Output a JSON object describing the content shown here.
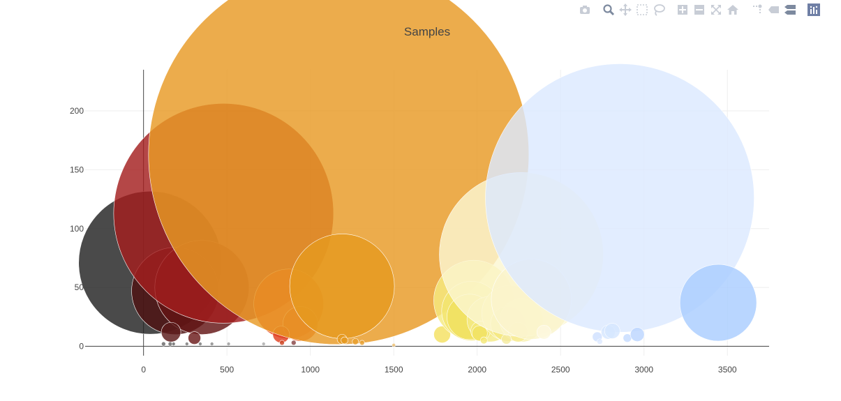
{
  "toolbar": {
    "colors": {
      "icon": "#c8cdd6",
      "logo": "#6f7fa5"
    },
    "buttons": [
      {
        "name": "camera-icon",
        "group": 0
      },
      {
        "name": "zoom-icon",
        "group": 1,
        "active": true
      },
      {
        "name": "pan-icon",
        "group": 1
      },
      {
        "name": "box-select-icon",
        "group": 1
      },
      {
        "name": "lasso-select-icon",
        "group": 1
      },
      {
        "name": "zoom-in-icon",
        "group": 2
      },
      {
        "name": "zoom-out-icon",
        "group": 2
      },
      {
        "name": "autoscale-icon",
        "group": 2
      },
      {
        "name": "reset-axes-icon",
        "group": 2
      },
      {
        "name": "spike-lines-icon",
        "group": 3
      },
      {
        "name": "hover-closest-icon",
        "group": 3
      },
      {
        "name": "hover-compare-icon",
        "group": 3,
        "active": true
      },
      {
        "name": "plotly-logo-icon",
        "group": 4
      }
    ]
  },
  "chart_data": {
    "type": "scatter",
    "title": "Samples",
    "xlabel": "",
    "ylabel": "",
    "xlim": [
      -350,
      3750
    ],
    "ylim": [
      -8,
      235
    ],
    "xticks": [
      0,
      500,
      1000,
      1500,
      2000,
      2500,
      3000,
      3500
    ],
    "yticks": [
      0,
      50,
      100,
      150,
      200
    ],
    "grid": true,
    "legend": "none",
    "points": [
      {
        "x": 40,
        "y": 71,
        "size": 205,
        "color": "#222222"
      },
      {
        "x": 190,
        "y": 47,
        "size": 125,
        "color": "#4e1212"
      },
      {
        "x": 350,
        "y": 50,
        "size": 135,
        "color": "#631414"
      },
      {
        "x": 480,
        "y": 113,
        "size": 315,
        "color": "#a31f1f"
      },
      {
        "x": 165,
        "y": 12,
        "size": 28,
        "color": "#5a1a1a"
      },
      {
        "x": 305,
        "y": 7,
        "size": 18,
        "color": "#6a1a1a"
      },
      {
        "x": 120,
        "y": 2,
        "size": 6,
        "color": "#666666"
      },
      {
        "x": 160,
        "y": 2,
        "size": 6,
        "color": "#666666"
      },
      {
        "x": 180,
        "y": 2,
        "size": 5,
        "color": "#666666"
      },
      {
        "x": 260,
        "y": 2,
        "size": 5,
        "color": "#777777"
      },
      {
        "x": 340,
        "y": 2,
        "size": 5,
        "color": "#777777"
      },
      {
        "x": 410,
        "y": 2,
        "size": 5,
        "color": "#888888"
      },
      {
        "x": 510,
        "y": 2,
        "size": 5,
        "color": "#999999"
      },
      {
        "x": 720,
        "y": 2,
        "size": 5,
        "color": "#aaaaaa"
      },
      {
        "x": 870,
        "y": 36,
        "size": 100,
        "color": "#ea4a20"
      },
      {
        "x": 940,
        "y": 19,
        "size": 50,
        "color": "#e85a2a"
      },
      {
        "x": 825,
        "y": 10,
        "size": 24,
        "color": "#e04020"
      },
      {
        "x": 830,
        "y": 3,
        "size": 7,
        "color": "#cc4422"
      },
      {
        "x": 900,
        "y": 3,
        "size": 7,
        "color": "#884444"
      },
      {
        "x": 1170,
        "y": 163,
        "size": 545,
        "color": "#e89a24"
      },
      {
        "x": 1190,
        "y": 51,
        "size": 150,
        "color": "#e59a20"
      },
      {
        "x": 1190,
        "y": 6,
        "size": 14,
        "color": "#e59a20"
      },
      {
        "x": 1205,
        "y": 5,
        "size": 10,
        "color": "#e59a20"
      },
      {
        "x": 1270,
        "y": 4,
        "size": 9,
        "color": "#e8a030"
      },
      {
        "x": 1310,
        "y": 3,
        "size": 7,
        "color": "#e8a030"
      },
      {
        "x": 1500,
        "y": 1,
        "size": 5,
        "color": "#eec070"
      },
      {
        "x": 1790,
        "y": 10,
        "size": 24,
        "color": "#f4e060"
      },
      {
        "x": 1980,
        "y": 39,
        "size": 115,
        "color": "#f5ea80"
      },
      {
        "x": 1965,
        "y": 30,
        "size": 85,
        "color": "#f3e570"
      },
      {
        "x": 1955,
        "y": 25,
        "size": 65,
        "color": "#f0e060"
      },
      {
        "x": 2075,
        "y": 23,
        "size": 65,
        "color": "#f4ea88"
      },
      {
        "x": 2020,
        "y": 13,
        "size": 28,
        "color": "#f4e878"
      },
      {
        "x": 2015,
        "y": 11,
        "size": 22,
        "color": "#f2e262"
      },
      {
        "x": 2040,
        "y": 5,
        "size": 10,
        "color": "#f4e878"
      },
      {
        "x": 2195,
        "y": 28,
        "size": 80,
        "color": "#f6ec94"
      },
      {
        "x": 2185,
        "y": 19,
        "size": 50,
        "color": "#f4e880"
      },
      {
        "x": 2265,
        "y": 22,
        "size": 62,
        "color": "#f8f0b0"
      },
      {
        "x": 2245,
        "y": 12,
        "size": 28,
        "color": "#f6ec96"
      },
      {
        "x": 2175,
        "y": 6,
        "size": 14,
        "color": "#f4eaa0"
      },
      {
        "x": 2265,
        "y": 78,
        "size": 235,
        "color": "#fbf6d2"
      },
      {
        "x": 2325,
        "y": 40,
        "size": 115,
        "color": "#faf4cc"
      },
      {
        "x": 2400,
        "y": 12,
        "size": 20,
        "color": "#fcf8de"
      },
      {
        "x": 2855,
        "y": 126,
        "size": 385,
        "color": "#dce9ff"
      },
      {
        "x": 3445,
        "y": 37,
        "size": 110,
        "color": "#aacdff"
      },
      {
        "x": 2720,
        "y": 8,
        "size": 14,
        "color": "#cfe0ff"
      },
      {
        "x": 2785,
        "y": 12,
        "size": 20,
        "color": "#d6e6ff"
      },
      {
        "x": 2810,
        "y": 13,
        "size": 22,
        "color": "#d6e6ff"
      },
      {
        "x": 2900,
        "y": 7,
        "size": 12,
        "color": "#c6dcff"
      },
      {
        "x": 2960,
        "y": 10,
        "size": 20,
        "color": "#bcd6ff"
      },
      {
        "x": 2735,
        "y": 4,
        "size": 8,
        "color": "#dde9ff"
      }
    ]
  }
}
